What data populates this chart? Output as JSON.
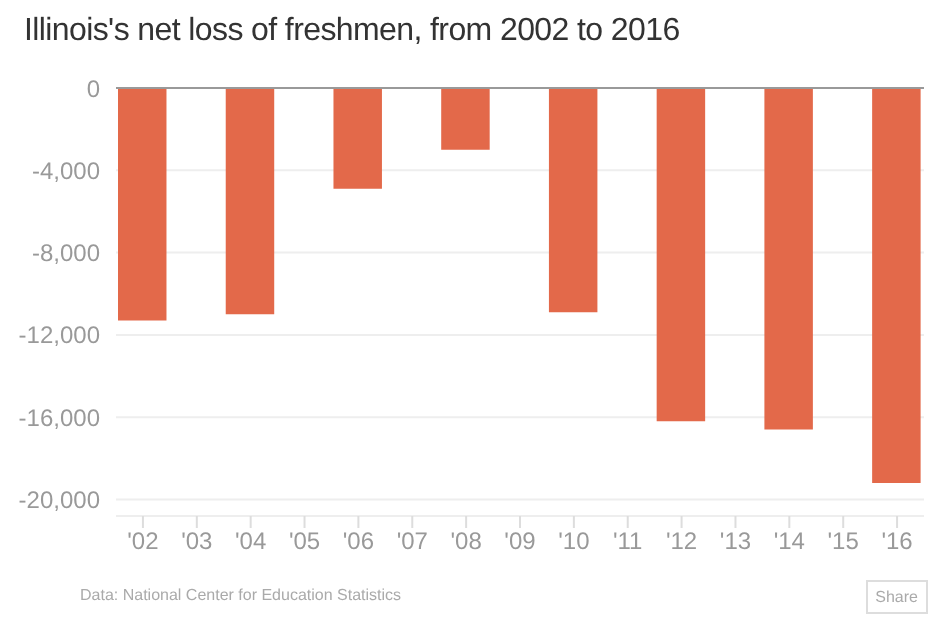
{
  "chart_data": {
    "type": "bar",
    "title": "Illinois's net loss of freshmen, from 2002 to 2016",
    "categories": [
      "'02",
      "'03",
      "'04",
      "'05",
      "'06",
      "'07",
      "'08",
      "'09",
      "'10",
      "'11",
      "'12",
      "'13",
      "'14",
      "'15",
      "'16"
    ],
    "values": [
      -11300,
      null,
      -11000,
      null,
      -4900,
      null,
      -3000,
      null,
      -10900,
      null,
      -16200,
      null,
      -16600,
      null,
      -19200
    ],
    "color": "#e3694a",
    "ylim": [
      -20800,
      0
    ],
    "yticks": [
      0,
      {
        "value": -4000,
        "label": "-4,000"
      },
      {
        "value": -8000,
        "label": "-8,000"
      },
      {
        "value": -12000,
        "label": "-12,000"
      },
      {
        "value": -16000,
        "label": "-16,000"
      },
      {
        "value": -20000,
        "label": "-20,000"
      }
    ],
    "grid": "y",
    "annotations": [
      "Data: National Center for Education Statistics",
      "Share"
    ]
  }
}
